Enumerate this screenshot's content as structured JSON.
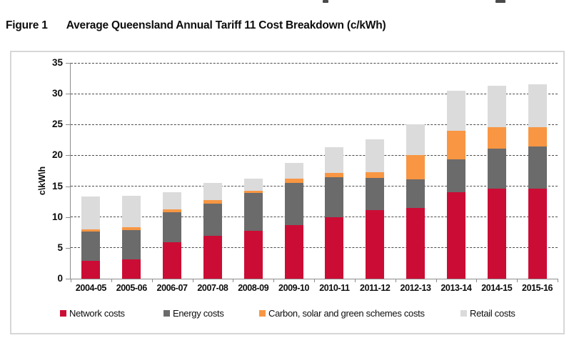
{
  "figure": {
    "label": "Figure 1",
    "title": "Average Queensland Annual Tariff 11 Cost Breakdown (c/kWh)"
  },
  "chart_data": {
    "type": "bar",
    "stacked": true,
    "title": "Average Queensland Annual Tariff 11 Cost Breakdown (c/kWh)",
    "xlabel": "",
    "ylabel": "c\\kW\\h",
    "ylim": [
      0,
      35
    ],
    "ytick_step": 5,
    "yticks": [
      0,
      5,
      10,
      15,
      20,
      25,
      30,
      35
    ],
    "grid": "dashed horizontal",
    "legend_position": "bottom",
    "categories": [
      "2004-05",
      "2005-06",
      "2006-07",
      "2007-08",
      "2008-09",
      "2009-10",
      "2010-11",
      "2011-12",
      "2012-13",
      "2013-14",
      "2014-15",
      "2015-16"
    ],
    "series": [
      {
        "name": "Network costs",
        "color": "#cb0d35",
        "values": [
          2.9,
          3.1,
          5.9,
          7.0,
          7.8,
          8.7,
          10.0,
          11.1,
          11.5,
          14.0,
          14.6,
          14.6
        ]
      },
      {
        "name": "Energy costs",
        "color": "#6b6b6b",
        "values": [
          4.8,
          4.8,
          4.9,
          5.2,
          6.1,
          6.8,
          6.4,
          5.2,
          4.6,
          5.3,
          6.5,
          6.8
        ]
      },
      {
        "name": "Carbon, solar and green schemes costs",
        "color": "#f89643",
        "values": [
          0.3,
          0.4,
          0.4,
          0.5,
          0.4,
          0.7,
          0.7,
          1.0,
          3.9,
          4.7,
          3.5,
          3.2
        ]
      },
      {
        "name": "Retail costs",
        "color": "#dbdbdb",
        "values": [
          5.3,
          5.2,
          2.8,
          2.8,
          1.9,
          2.6,
          4.2,
          5.3,
          5.0,
          6.5,
          6.7,
          6.9
        ]
      }
    ],
    "totals": [
      13.3,
      13.5,
      14.0,
      15.5,
      16.2,
      18.8,
      21.3,
      22.6,
      25.0,
      30.5,
      31.3,
      31.5
    ],
    "legend_x_positions": [
      68,
      213,
      347,
      629
    ],
    "colors": {
      "gridline": "#4b4b4b",
      "axis": "#8c8c8c",
      "box_border": "#d7d7d7",
      "text": "#0d0d0d"
    }
  }
}
